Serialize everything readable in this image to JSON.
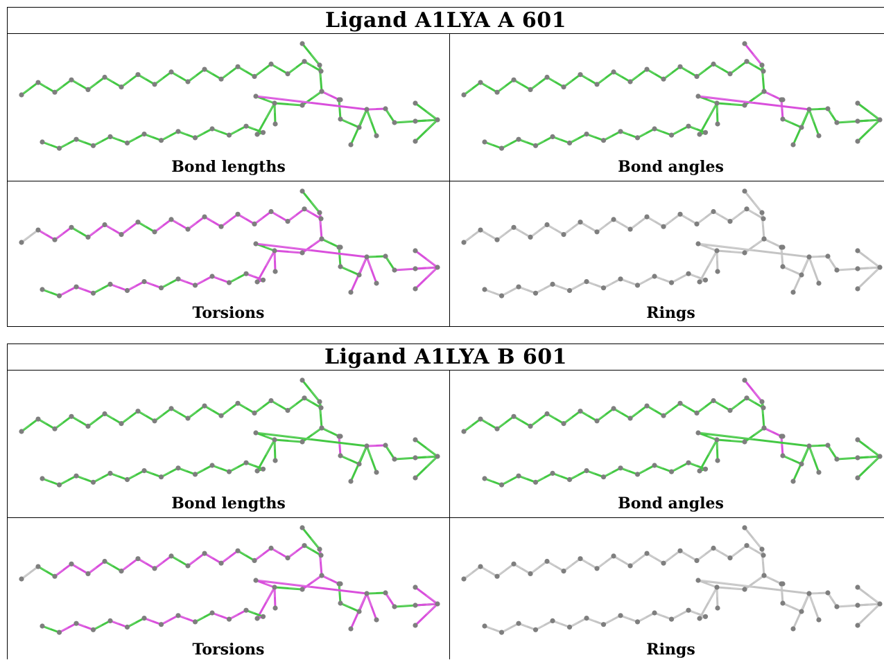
{
  "colors": {
    "green": "#43c843",
    "magenta": "#d94fdc",
    "gray": "#c4c4c4",
    "atom": "#7e7e7e"
  },
  "blocks": [
    {
      "title": "Ligand A1LYA A 601",
      "panels": [
        {
          "label": "Bond lengths",
          "mode": "lengths",
          "magenta": [
            [
              21,
              22
            ],
            [
              24,
              29
            ],
            [
              29,
              31
            ],
            [
              31,
              32
            ]
          ]
        },
        {
          "label": "Bond angles",
          "mode": "angles",
          "magenta": [
            [
              19,
              20
            ],
            [
              20,
              21
            ],
            [
              21,
              22
            ],
            [
              22,
              23
            ],
            [
              24,
              29
            ],
            [
              29,
              30
            ],
            [
              29,
              31
            ]
          ]
        },
        {
          "label": "Torsions",
          "mode": "torsions",
          "gray": [
            [
              0,
              1
            ],
            [
              40,
              41
            ],
            [
              31,
              34
            ],
            [
              31,
              35
            ],
            [
              37,
              38
            ],
            [
              37,
              39
            ],
            [
              37,
              40
            ]
          ],
          "green": [
            [
              3,
              4
            ],
            [
              7,
              8
            ],
            [
              19,
              20
            ],
            [
              20,
              21
            ],
            [
              21,
              22
            ],
            [
              22,
              23
            ],
            [
              23,
              24
            ],
            [
              25,
              26
            ],
            [
              28,
              29
            ],
            [
              29,
              30
            ],
            [
              30,
              31
            ],
            [
              31,
              32
            ],
            [
              32,
              33
            ],
            [
              41,
              42
            ],
            [
              44,
              45
            ],
            [
              48,
              49
            ],
            [
              52,
              53
            ],
            [
              54,
              28
            ]
          ]
        },
        {
          "label": "Rings",
          "mode": "rings"
        }
      ]
    },
    {
      "title": "Ligand A1LYA B 601",
      "panels": [
        {
          "label": "Bond lengths",
          "mode": "lengths",
          "magenta": [
            [
              22,
              23
            ],
            [
              24,
              29
            ],
            [
              31,
              32
            ]
          ]
        },
        {
          "label": "Bond angles",
          "mode": "angles",
          "magenta": [
            [
              19,
              20
            ],
            [
              20,
              21
            ],
            [
              21,
              22
            ],
            [
              22,
              23
            ],
            [
              24,
              29
            ]
          ]
        },
        {
          "label": "Torsions",
          "mode": "torsions",
          "gray": [
            [
              0,
              1
            ],
            [
              40,
              41
            ],
            [
              31,
              34
            ],
            [
              31,
              35
            ],
            [
              37,
              38
            ],
            [
              37,
              39
            ],
            [
              37,
              40
            ]
          ],
          "green": [
            [
              1,
              2
            ],
            [
              5,
              6
            ],
            [
              9,
              10
            ],
            [
              13,
              14
            ],
            [
              17,
              18
            ],
            [
              19,
              20
            ],
            [
              20,
              21
            ],
            [
              22,
              23
            ],
            [
              23,
              24
            ],
            [
              25,
              26
            ],
            [
              27,
              28
            ],
            [
              30,
              31
            ],
            [
              31,
              32
            ],
            [
              33,
              37
            ],
            [
              41,
              42
            ],
            [
              44,
              45
            ],
            [
              46,
              47
            ],
            [
              50,
              51
            ],
            [
              53,
              54
            ]
          ]
        },
        {
          "label": "Rings",
          "mode": "rings"
        }
      ]
    }
  ]
}
